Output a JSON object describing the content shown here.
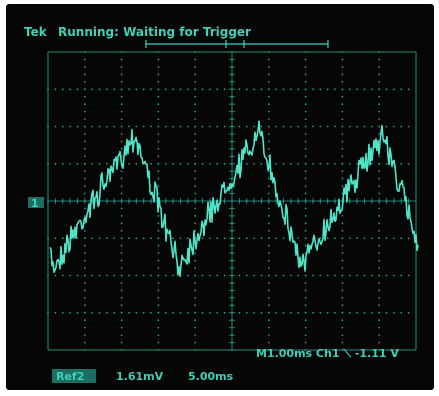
{
  "scope": {
    "brand": "Tek",
    "status": "Running: Waiting for Trigger",
    "channel_marker": "1",
    "bottom_readout": "M1.00ms Ch1 ⟍ -1.11 V",
    "ref_label": "Ref2",
    "ref_volts": "1.61mV",
    "ref_time": "5.00ms",
    "colors": {
      "trace": "#4fe3c8",
      "text": "#3fd0b8",
      "grid": "#2b9c8a",
      "background": "#050605"
    }
  }
}
